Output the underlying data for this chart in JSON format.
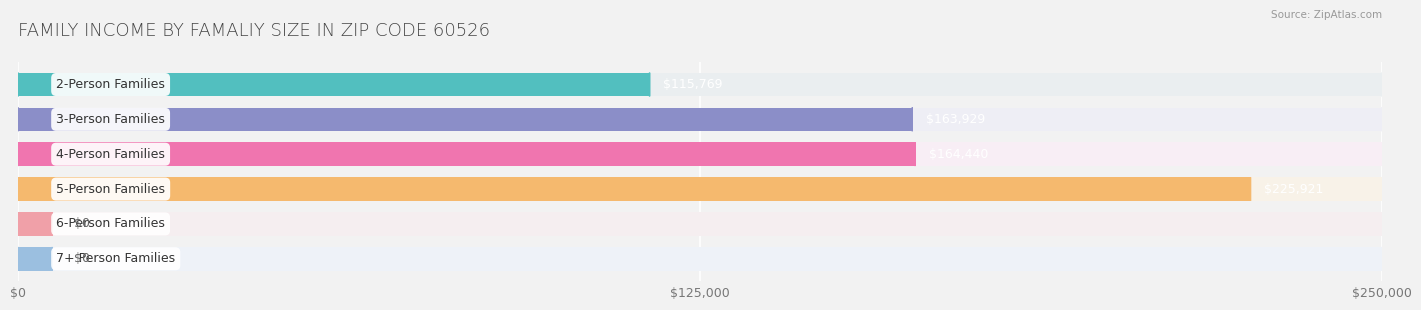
{
  "title": "FAMILY INCOME BY FAMALIY SIZE IN ZIP CODE 60526",
  "source": "Source: ZipAtlas.com",
  "categories": [
    "2-Person Families",
    "3-Person Families",
    "4-Person Families",
    "5-Person Families",
    "6-Person Families",
    "7+ Person Families"
  ],
  "values": [
    115769,
    163929,
    164440,
    225921,
    0,
    0
  ],
  "bar_colors": [
    "#52BFBF",
    "#8B8EC8",
    "#F075AF",
    "#F5B96E",
    "#F0A0A8",
    "#9BBFE0"
  ],
  "bar_bg_colors": [
    "#EAEEF0",
    "#EEEEF5",
    "#F8EEF5",
    "#F8F2E8",
    "#F5EEF0",
    "#EEF2F8"
  ],
  "value_colors": [
    "white",
    "white",
    "white",
    "white",
    "#666666",
    "#666666"
  ],
  "xlim": [
    0,
    250000
  ],
  "xticks": [
    0,
    125000,
    250000
  ],
  "xticklabels": [
    "$0",
    "$125,000",
    "$250,000"
  ],
  "background_color": "#f2f2f2",
  "bar_height": 0.68,
  "title_fontsize": 13,
  "label_fontsize": 9,
  "value_fontsize": 9,
  "tick_fontsize": 9
}
